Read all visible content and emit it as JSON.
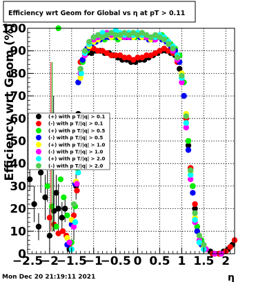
{
  "title": "Efficiency wrt Geom for Global vs   η at pT > 0.11",
  "timestamp": "Mon Dec 20 21:19:11 2021",
  "chart_data": {
    "type": "scatter",
    "title": "Efficiency wrt Geom for Global vs   η at pT > 0.11",
    "xlabel": "η",
    "ylabel": "Efficiency wrt Geom (%)",
    "xlim": [
      -2.5,
      2.2
    ],
    "ylim": [
      0,
      100
    ],
    "x_ticks": [
      -2.5,
      -2,
      -1.5,
      -1,
      -0.5,
      0,
      0.5,
      1,
      1.5,
      2
    ],
    "x_tick_labels": [
      "−2.5",
      "−2",
      "−1.5",
      "−1",
      "−0.5",
      "0",
      "0.5",
      "1",
      "1.5",
      "2"
    ],
    "y_ticks": [
      0,
      10,
      20,
      30,
      40,
      50,
      60,
      70,
      80,
      90,
      100
    ],
    "y_tick_labels": [
      "0",
      "10",
      "20",
      "30",
      "40",
      "50",
      "60",
      "70",
      "80",
      "90",
      "100"
    ],
    "grid": true,
    "legend_position": "middle-left",
    "series": [
      {
        "name": "(+) with p T/|q| > 0.1",
        "color": "#000000"
      },
      {
        "name": "(-) with p T/|q| > 0.1",
        "color": "#ff0000"
      },
      {
        "name": "(+) with p T/|q| > 0.5",
        "color": "#00ee00"
      },
      {
        "name": "(-) with p T/|q| > 0.5",
        "color": "#0000ff"
      },
      {
        "name": "(+) with p T/|q| > 1.0",
        "color": "#ffff00"
      },
      {
        "name": "(-) with p T/|q| > 1.0",
        "color": "#ff00ff"
      },
      {
        "name": "(+) with p T/|q| > 2.0",
        "color": "#00ffff"
      },
      {
        "name": "(-) with p T/|q| > 2.0",
        "color": "#55cc55"
      }
    ],
    "groups": [
      {
        "series": 0,
        "points": [
          [
            -2.45,
            33
          ],
          [
            -2.35,
            22
          ],
          [
            -2.25,
            12
          ],
          [
            -2.2,
            36
          ],
          [
            -2.1,
            25
          ],
          [
            -2.05,
            30
          ],
          [
            -2.0,
            8
          ],
          [
            -1.9,
            19
          ],
          [
            -1.85,
            27
          ],
          [
            -1.8,
            20
          ],
          [
            -1.72,
            16
          ],
          [
            -1.65,
            20
          ],
          [
            -1.55,
            2
          ],
          [
            -1.45,
            14
          ],
          [
            -1.4,
            30
          ],
          [
            -1.35,
            62
          ],
          [
            -1.3,
            82
          ],
          [
            -1.25,
            86
          ],
          [
            -1.2,
            88
          ],
          [
            -1.15,
            89
          ],
          [
            -1.1,
            90
          ],
          [
            -1.05,
            89
          ],
          [
            -0.95,
            90
          ],
          [
            -0.85,
            90
          ],
          [
            -0.75,
            89
          ],
          [
            -0.65,
            89
          ],
          [
            -0.55,
            88
          ],
          [
            -0.45,
            87
          ],
          [
            -0.35,
            86
          ],
          [
            -0.25,
            86
          ],
          [
            -0.15,
            85
          ],
          [
            -0.05,
            85
          ],
          [
            0.05,
            86
          ],
          [
            0.15,
            86
          ],
          [
            0.25,
            87
          ],
          [
            0.35,
            88
          ],
          [
            0.45,
            89
          ],
          [
            0.55,
            90
          ],
          [
            0.65,
            90
          ],
          [
            0.75,
            89
          ],
          [
            0.85,
            88
          ],
          [
            0.95,
            82
          ],
          [
            1.05,
            70
          ],
          [
            1.1,
            60
          ],
          [
            1.15,
            48
          ],
          [
            1.2,
            38
          ],
          [
            1.25,
            30
          ],
          [
            1.3,
            20
          ],
          [
            1.35,
            10
          ],
          [
            1.45,
            5
          ],
          [
            1.55,
            2
          ],
          [
            1.65,
            1
          ],
          [
            1.75,
            0
          ],
          [
            1.85,
            0
          ],
          [
            1.95,
            1
          ],
          [
            2.05,
            2
          ],
          [
            2.15,
            4
          ]
        ],
        "error_bars": true
      },
      {
        "series": 1,
        "points": [
          [
            -2.0,
            16
          ],
          [
            -1.9,
            13
          ],
          [
            -1.8,
            9
          ],
          [
            -1.7,
            10
          ],
          [
            -1.62,
            8
          ],
          [
            -1.55,
            4
          ],
          [
            -1.45,
            17
          ],
          [
            -1.38,
            28
          ],
          [
            -1.3,
            85
          ],
          [
            -1.2,
            89
          ],
          [
            -1.1,
            91
          ],
          [
            -1.0,
            91
          ],
          [
            -0.9,
            90
          ],
          [
            -0.8,
            90
          ],
          [
            -0.7,
            89
          ],
          [
            -0.6,
            88
          ],
          [
            -0.5,
            88
          ],
          [
            -0.4,
            88
          ],
          [
            -0.3,
            87
          ],
          [
            -0.2,
            87
          ],
          [
            -0.1,
            86
          ],
          [
            0.0,
            87
          ],
          [
            0.1,
            87
          ],
          [
            0.2,
            88
          ],
          [
            0.3,
            88
          ],
          [
            0.4,
            89
          ],
          [
            0.5,
            90
          ],
          [
            0.6,
            91
          ],
          [
            0.7,
            90
          ],
          [
            0.8,
            89
          ],
          [
            0.9,
            85
          ],
          [
            1.0,
            78
          ],
          [
            1.1,
            60
          ],
          [
            1.15,
            50
          ],
          [
            1.2,
            38
          ],
          [
            1.3,
            22
          ],
          [
            1.35,
            12
          ],
          [
            1.45,
            4
          ],
          [
            1.55,
            2
          ],
          [
            1.7,
            0
          ],
          [
            1.85,
            0
          ],
          [
            2.0,
            1
          ],
          [
            2.1,
            3
          ],
          [
            2.2,
            6
          ]
        ]
      },
      {
        "series": 2,
        "points": [
          [
            -2.05,
            30
          ],
          [
            -1.95,
            21
          ],
          [
            -1.85,
            12
          ],
          [
            -1.75,
            33
          ],
          [
            -1.68,
            25
          ],
          [
            -1.6,
            17
          ],
          [
            -1.5,
            5
          ],
          [
            -1.42,
            21
          ],
          [
            -1.35,
            76
          ],
          [
            -1.25,
            85
          ],
          [
            -1.15,
            90
          ],
          [
            -1.05,
            93
          ],
          [
            -0.95,
            94
          ],
          [
            -0.85,
            95
          ],
          [
            -0.75,
            95
          ],
          [
            -0.65,
            96
          ],
          [
            -0.55,
            96
          ],
          [
            -0.45,
            95
          ],
          [
            -0.35,
            96
          ],
          [
            -0.25,
            97
          ],
          [
            -0.15,
            97
          ],
          [
            -0.05,
            96
          ],
          [
            0.05,
            97
          ],
          [
            0.15,
            96
          ],
          [
            0.25,
            95
          ],
          [
            0.35,
            96
          ],
          [
            0.45,
            96
          ],
          [
            0.55,
            97
          ],
          [
            0.65,
            95
          ],
          [
            0.75,
            93
          ],
          [
            0.85,
            91
          ],
          [
            0.95,
            88
          ],
          [
            1.05,
            76
          ],
          [
            1.15,
            50
          ],
          [
            1.25,
            30
          ],
          [
            1.35,
            12
          ],
          [
            1.45,
            6
          ],
          [
            1.55,
            2
          ],
          [
            -1.8,
            100
          ]
        ]
      },
      {
        "series": 3,
        "points": [
          [
            -1.6,
            4
          ],
          [
            -1.5,
            13
          ],
          [
            -1.42,
            31
          ],
          [
            -1.35,
            76
          ],
          [
            -1.25,
            86
          ],
          [
            -1.15,
            91
          ],
          [
            -1.05,
            93
          ],
          [
            -0.95,
            94
          ],
          [
            -0.85,
            95
          ],
          [
            -0.75,
            96
          ],
          [
            -0.65,
            96
          ],
          [
            -0.55,
            97
          ],
          [
            -0.45,
            96
          ],
          [
            -0.35,
            97
          ],
          [
            -0.25,
            96
          ],
          [
            -0.15,
            96
          ],
          [
            -0.05,
            97
          ],
          [
            0.05,
            96
          ],
          [
            0.15,
            96
          ],
          [
            0.25,
            95
          ],
          [
            0.35,
            95
          ],
          [
            0.45,
            96
          ],
          [
            0.55,
            95
          ],
          [
            0.65,
            94
          ],
          [
            0.75,
            92
          ],
          [
            0.85,
            90
          ],
          [
            0.95,
            85
          ],
          [
            1.05,
            70
          ],
          [
            1.15,
            46
          ],
          [
            1.25,
            27
          ],
          [
            1.35,
            10
          ],
          [
            1.45,
            4
          ]
        ]
      },
      {
        "series": 4,
        "points": [
          [
            -1.6,
            7
          ],
          [
            -1.5,
            15
          ],
          [
            -1.4,
            32
          ],
          [
            -1.3,
            78
          ],
          [
            -1.2,
            88
          ],
          [
            -1.1,
            92
          ],
          [
            -1.0,
            94
          ],
          [
            -0.9,
            95
          ],
          [
            -0.8,
            96
          ],
          [
            -0.7,
            97
          ],
          [
            -0.6,
            96
          ],
          [
            -0.5,
            97
          ],
          [
            -0.4,
            96
          ],
          [
            -0.3,
            97
          ],
          [
            -0.2,
            97
          ],
          [
            -0.1,
            96
          ],
          [
            0.0,
            97
          ],
          [
            0.1,
            96
          ],
          [
            0.2,
            96
          ],
          [
            0.3,
            95
          ],
          [
            0.4,
            96
          ],
          [
            0.5,
            96
          ],
          [
            0.6,
            95
          ],
          [
            0.7,
            94
          ],
          [
            0.8,
            92
          ],
          [
            0.9,
            88
          ],
          [
            1.0,
            80
          ],
          [
            1.1,
            62
          ],
          [
            1.2,
            36
          ],
          [
            1.3,
            16
          ],
          [
            1.4,
            8
          ],
          [
            1.5,
            3
          ]
        ]
      },
      {
        "series": 5,
        "points": [
          [
            -1.55,
            5
          ],
          [
            -1.45,
            12
          ],
          [
            -1.38,
            31
          ],
          [
            -1.3,
            80
          ],
          [
            -1.2,
            88
          ],
          [
            -1.1,
            93
          ],
          [
            -1.0,
            95
          ],
          [
            -0.9,
            96
          ],
          [
            -0.8,
            97
          ],
          [
            -0.7,
            98
          ],
          [
            -0.6,
            97
          ],
          [
            -0.5,
            98
          ],
          [
            -0.4,
            97
          ],
          [
            -0.3,
            96
          ],
          [
            -0.2,
            96
          ],
          [
            -0.1,
            97
          ],
          [
            0.0,
            98
          ],
          [
            0.1,
            97
          ],
          [
            0.2,
            96
          ],
          [
            0.3,
            96
          ],
          [
            0.4,
            95
          ],
          [
            0.5,
            96
          ],
          [
            0.6,
            95
          ],
          [
            0.7,
            93
          ],
          [
            0.8,
            90
          ],
          [
            0.9,
            86
          ],
          [
            1.0,
            76
          ],
          [
            1.1,
            56
          ],
          [
            1.2,
            33
          ],
          [
            1.3,
            14
          ],
          [
            1.4,
            6
          ],
          [
            1.55,
            2
          ],
          [
            1.75,
            0
          ],
          [
            1.9,
            0
          ]
        ]
      },
      {
        "series": 6,
        "points": [
          [
            -1.5,
            2
          ],
          [
            -1.42,
            14
          ],
          [
            -1.35,
            36
          ],
          [
            -1.28,
            80
          ],
          [
            -1.2,
            89
          ],
          [
            -1.1,
            93
          ],
          [
            -1.0,
            96
          ],
          [
            -0.9,
            97
          ],
          [
            -0.8,
            98
          ],
          [
            -0.7,
            97
          ],
          [
            -0.6,
            98
          ],
          [
            -0.5,
            99
          ],
          [
            -0.4,
            98
          ],
          [
            -0.3,
            97
          ],
          [
            -0.2,
            98
          ],
          [
            -0.1,
            97
          ],
          [
            0.0,
            98
          ],
          [
            0.1,
            97
          ],
          [
            0.2,
            97
          ],
          [
            0.3,
            96
          ],
          [
            0.4,
            96
          ],
          [
            0.5,
            97
          ],
          [
            0.6,
            96
          ],
          [
            0.7,
            94
          ],
          [
            0.8,
            92
          ],
          [
            0.9,
            88
          ],
          [
            1.0,
            78
          ],
          [
            1.1,
            58
          ],
          [
            1.2,
            35
          ],
          [
            1.3,
            15
          ],
          [
            1.4,
            5
          ],
          [
            1.5,
            2
          ]
        ]
      },
      {
        "series": 7,
        "points": [
          [
            -1.45,
            22
          ],
          [
            -1.38,
            38
          ],
          [
            -1.3,
            82
          ],
          [
            -1.2,
            90
          ],
          [
            -1.1,
            94
          ],
          [
            -1.0,
            96
          ],
          [
            -0.9,
            97
          ],
          [
            -0.8,
            96
          ],
          [
            -0.7,
            97
          ],
          [
            -0.6,
            98
          ],
          [
            -0.5,
            97
          ],
          [
            -0.4,
            97
          ],
          [
            -0.3,
            98
          ],
          [
            -0.2,
            97
          ],
          [
            -0.1,
            98
          ],
          [
            0.0,
            97
          ],
          [
            0.1,
            98
          ],
          [
            0.2,
            97
          ],
          [
            0.3,
            96
          ],
          [
            0.4,
            97
          ],
          [
            0.5,
            96
          ],
          [
            0.6,
            95
          ],
          [
            0.7,
            93
          ],
          [
            0.8,
            91
          ],
          [
            0.9,
            87
          ],
          [
            1.0,
            79
          ],
          [
            1.1,
            61
          ],
          [
            1.2,
            37
          ],
          [
            1.3,
            18
          ],
          [
            1.4,
            8
          ],
          [
            1.5,
            4
          ]
        ]
      }
    ]
  }
}
